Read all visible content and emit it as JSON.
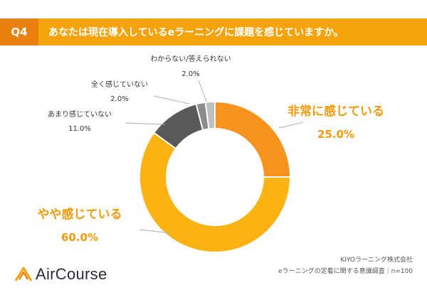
{
  "header": {
    "question_no": "Q4",
    "question": "あなたは現在導入しているeラーニングに課題を感じていますか。"
  },
  "chart_data": {
    "type": "pie",
    "donut": true,
    "slices": [
      {
        "label": "非常に感じている",
        "value": 25.0,
        "value_label": "25.0%",
        "color": "#f7931e"
      },
      {
        "label": "やや感じている",
        "value": 60.0,
        "value_label": "60.0%",
        "color": "#fbb314"
      },
      {
        "label": "あまり感じていない",
        "value": 11.0,
        "value_label": "11.0%",
        "color": "#595959"
      },
      {
        "label": "全く感じていない",
        "value": 2.0,
        "value_label": "2.0%",
        "color": "#8c8c8c"
      },
      {
        "label": "わからない/答えられない",
        "value": 2.0,
        "value_label": "2.0%",
        "color": "#bfbfbf"
      }
    ]
  },
  "source": {
    "company": "KIYOラーニング株式会社",
    "survey": "eラーニングの定着に関する意識調査｜n=100"
  },
  "brand": {
    "name": "AirCourse"
  }
}
